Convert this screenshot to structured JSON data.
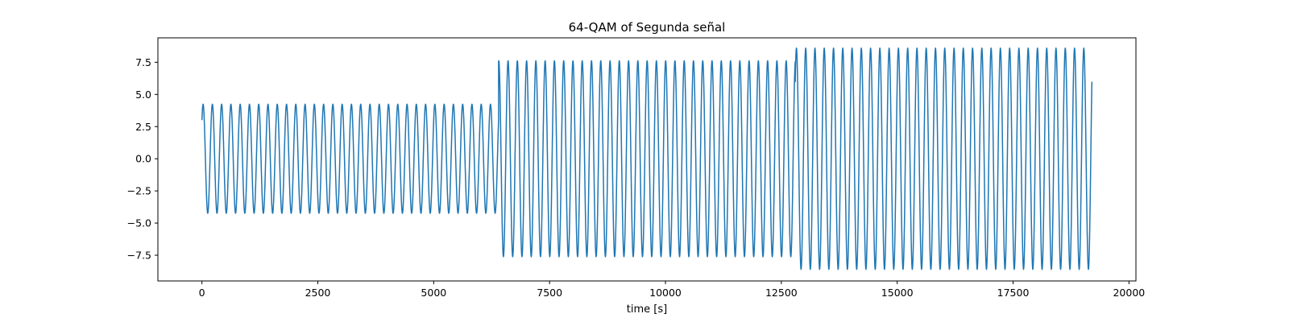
{
  "chart_data": {
    "type": "line",
    "title": "64-QAM of Segunda señal",
    "xlabel": "time [s]",
    "ylabel": "",
    "xlim": [
      -950,
      20150
    ],
    "ylim": [
      -9.5,
      9.4
    ],
    "xticks": [
      0,
      2500,
      5000,
      7500,
      10000,
      12500,
      15000,
      17500,
      20000
    ],
    "xtick_labels": [
      "0",
      "2500",
      "5000",
      "7500",
      "10000",
      "12500",
      "15000",
      "17500",
      "20000"
    ],
    "yticks": [
      -7.5,
      -5.0,
      -2.5,
      0.0,
      2.5,
      5.0,
      7.5
    ],
    "ytick_labels": [
      "−7.5",
      "−5.0",
      "−2.5",
      "0.0",
      "2.5",
      "5.0",
      "7.5"
    ],
    "grid": false,
    "series": [
      {
        "name": "",
        "color": "#1f77b4",
        "segments": [
          {
            "t_start": 0,
            "t_end": 6400,
            "amplitude": 4.24,
            "period": 200,
            "phase_rad": -0.785
          },
          {
            "t_start": 6400,
            "t_end": 12800,
            "amplitude": 7.62,
            "period": 200,
            "phase_rad": -0.135
          },
          {
            "t_start": 12800,
            "t_end": 19200,
            "amplitude": 8.6,
            "period": 200,
            "phase_rad": -0.8
          }
        ]
      }
    ]
  }
}
